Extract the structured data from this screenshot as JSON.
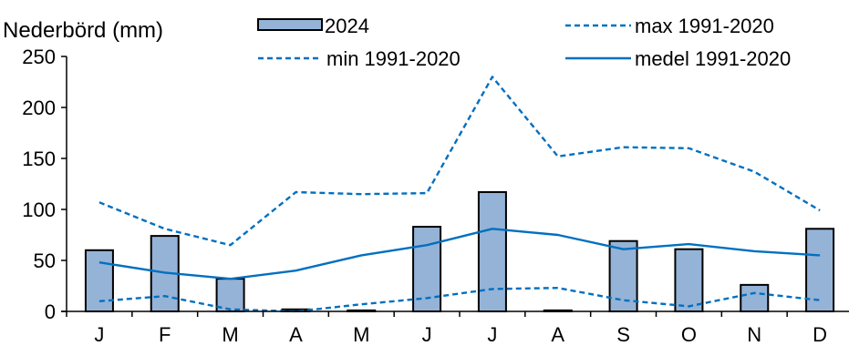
{
  "chart_data": {
    "type": "bar",
    "ylabel": "Nederbörd (mm)",
    "categories": [
      "J",
      "F",
      "M",
      "A",
      "M",
      "J",
      "J",
      "A",
      "S",
      "O",
      "N",
      "D"
    ],
    "ylim": [
      0,
      250
    ],
    "yticks": [
      0,
      50,
      100,
      150,
      200,
      250
    ],
    "grid": false,
    "legend_position": "top",
    "series": [
      {
        "name": "2024",
        "kind": "bar",
        "style": "solid",
        "color": "#95b3d7",
        "edge_color": "#000000",
        "values": [
          60,
          74,
          32,
          2,
          1,
          83,
          117,
          1,
          69,
          61,
          26,
          81
        ]
      },
      {
        "name": "max 1991-2020",
        "kind": "line",
        "style": "dashed",
        "color": "#0070c0",
        "values": [
          107,
          81,
          65,
          117,
          115,
          116,
          230,
          152,
          161,
          160,
          137,
          99
        ]
      },
      {
        "name": "min 1991-2020",
        "kind": "line",
        "style": "dashed",
        "color": "#0070c0",
        "values": [
          10,
          15,
          2,
          0,
          7,
          13,
          22,
          23,
          11,
          5,
          18,
          11
        ]
      },
      {
        "name": "medel 1991-2020",
        "kind": "line",
        "style": "solid",
        "color": "#0070c0",
        "values": [
          48,
          38,
          32,
          40,
          55,
          65,
          81,
          75,
          61,
          66,
          59,
          55
        ]
      }
    ]
  }
}
